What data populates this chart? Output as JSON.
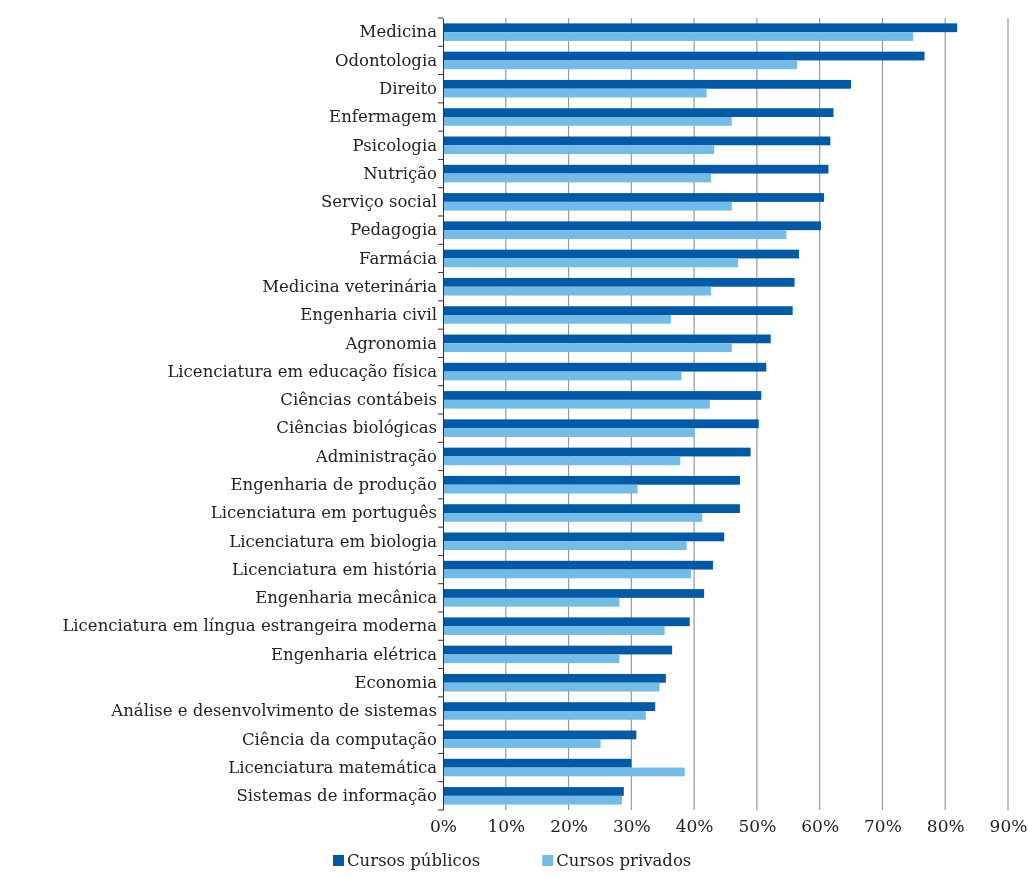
{
  "chart_data": {
    "type": "bar",
    "orientation": "horizontal",
    "categories": [
      "Medicina",
      "Odontologia",
      "Direito",
      "Enfermagem",
      "Psicologia",
      "Nutrição",
      "Serviço social",
      "Pedagogia",
      "Farmácia",
      "Medicina veterinária",
      "Engenharia civil",
      "Agronomia",
      "Licenciatura em educação física",
      "Ciências contábeis",
      "Ciências biológicas",
      "Administração",
      "Engenharia de produção",
      "Licenciatura em português",
      "Licenciatura em biologia",
      "Licenciatura em história",
      "Engenharia mecânica",
      "Licenciatura em língua estrangeira moderna",
      "Engenharia elétrica",
      "Economia",
      "Análise e desenvolvimento de sistemas",
      "Ciência da computação",
      "Licenciatura matemática",
      "Sistemas de informação"
    ],
    "series": [
      {
        "name": "Cursos públicos",
        "color": "#005aa8",
        "values": [
          81.9,
          76.7,
          65.0,
          62.2,
          61.7,
          61.4,
          60.7,
          60.2,
          56.7,
          56.0,
          55.7,
          52.2,
          51.5,
          50.7,
          50.3,
          49.0,
          47.3,
          47.3,
          44.8,
          43.0,
          41.6,
          39.3,
          36.5,
          35.5,
          33.8,
          30.8,
          30.0,
          28.8
        ]
      },
      {
        "name": "Cursos privados",
        "color": "#74bce8",
        "values": [
          74.9,
          56.4,
          42.0,
          46.0,
          43.2,
          42.7,
          46.0,
          54.7,
          47.0,
          42.7,
          36.3,
          46.0,
          38.0,
          42.5,
          40.1,
          37.8,
          31.0,
          41.3,
          38.8,
          39.5,
          28.1,
          35.3,
          28.1,
          34.5,
          32.3,
          25.1,
          38.5,
          28.5
        ]
      }
    ],
    "xlim": [
      0,
      90
    ],
    "xticks": [
      {
        "value": 0,
        "label": "0%"
      },
      {
        "value": 10,
        "label": "10%"
      },
      {
        "value": 20,
        "label": "20%"
      },
      {
        "value": 30,
        "label": "30%"
      },
      {
        "value": 40,
        "label": "40%"
      },
      {
        "value": 50,
        "label": "50%"
      },
      {
        "value": 60,
        "label": "60%"
      },
      {
        "value": 70,
        "label": "70%"
      },
      {
        "value": 80,
        "label": "80%"
      },
      {
        "value": 90,
        "label": "90%"
      }
    ],
    "grid": "x",
    "legend": "bottom"
  }
}
